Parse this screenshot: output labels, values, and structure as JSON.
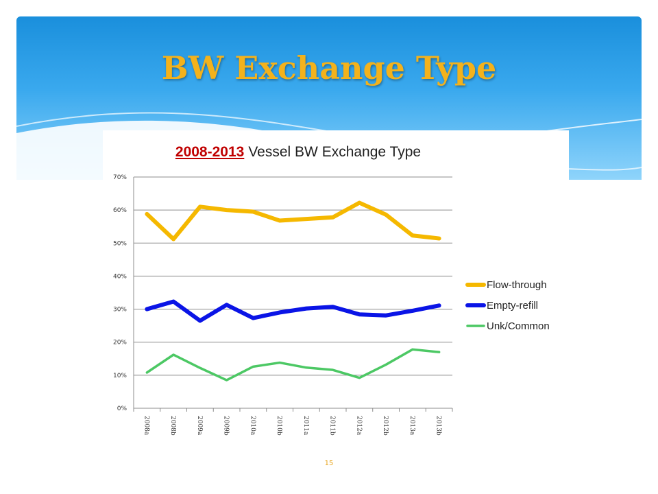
{
  "slide": {
    "title": "BW Exchange Type",
    "page_number": "15"
  },
  "chart_title": {
    "highlight": "2008-2013",
    "rest": "Vessel BW Exchange Type"
  },
  "colors": {
    "header_blue": "#1a8fdc",
    "title_gold": "#f3b21c",
    "years_red": "#c00000"
  },
  "chart_data": {
    "type": "line",
    "title": "2008-2013 Vessel BW Exchange Type",
    "xlabel": "",
    "ylabel": "",
    "categories": [
      "2008a",
      "2008b",
      "2009a",
      "2009b",
      "2010a",
      "2010b",
      "2011a",
      "2011b",
      "2012a",
      "2012b",
      "2013a",
      "2013b"
    ],
    "y_ticks": [
      "0%",
      "10%",
      "20%",
      "30%",
      "40%",
      "50%",
      "60%",
      "70%"
    ],
    "ylim": [
      0,
      70
    ],
    "grid": true,
    "legend_position": "right",
    "series": [
      {
        "name": "Flow-through",
        "color": "#f5b800",
        "values": [
          58.8,
          51.2,
          61.0,
          60.0,
          59.5,
          56.8,
          57.3,
          57.8,
          62.2,
          58.6,
          52.3,
          51.4
        ]
      },
      {
        "name": "Empty-refill",
        "color": "#0a14e6",
        "values": [
          30.0,
          32.3,
          26.5,
          31.3,
          27.3,
          29.0,
          30.2,
          30.7,
          28.4,
          28.1,
          29.5,
          31.1
        ]
      },
      {
        "name": "Unk/Common",
        "color": "#4cc864",
        "values": [
          10.8,
          16.2,
          12.2,
          8.5,
          12.6,
          13.8,
          12.3,
          11.6,
          9.2,
          13.2,
          17.8,
          17.0
        ]
      }
    ]
  }
}
